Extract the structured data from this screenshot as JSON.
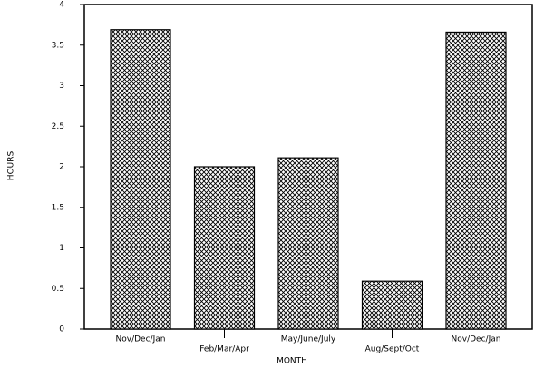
{
  "chart_data": {
    "type": "bar",
    "x_label": "MONTH",
    "y_label": "HOURS",
    "categories": [
      "Nov/Dec/Jan",
      "Feb/Mar/Apr",
      "May/June/July",
      "Aug/Sept/Oct",
      "Nov/Dec/Jan"
    ],
    "values": [
      3.69,
      2.0,
      2.11,
      0.59,
      3.66
    ],
    "color": "#000000",
    "ylim": [
      0,
      4
    ],
    "yticks": [
      0,
      0.5,
      1,
      1.5,
      2,
      2.5,
      3,
      3.5,
      4
    ],
    "grid": false
  }
}
